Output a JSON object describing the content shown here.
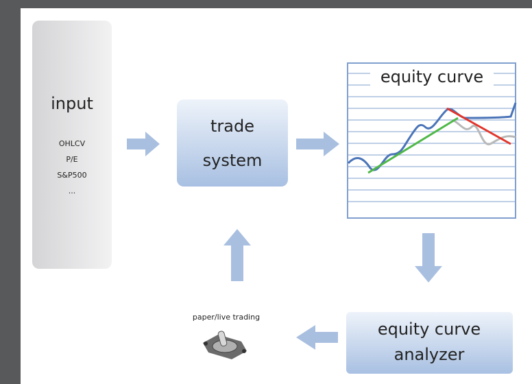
{
  "input": {
    "title": "input",
    "items": [
      "OHLCV",
      "P/E",
      "S&P500",
      "..."
    ]
  },
  "trade_system": {
    "lines": [
      "trade",
      "system"
    ]
  },
  "equity_chart": {
    "title": "equity curve"
  },
  "analyzer": {
    "lines": [
      "equity curve",
      "analyzer"
    ]
  },
  "switch": {
    "label": "paper/live trading"
  }
}
